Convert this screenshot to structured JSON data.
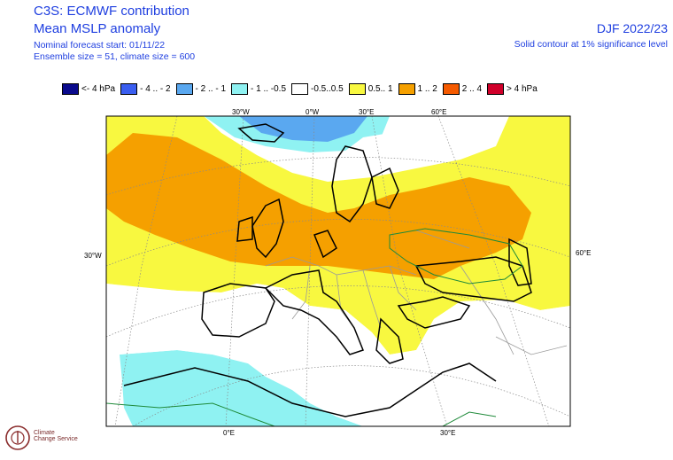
{
  "header": {
    "title_line1": "C3S: ECMWF contribution",
    "title_line2": "Mean MSLP anomaly",
    "forecast_start": "Nominal forecast start: 01/11/22",
    "ensemble": "Ensemble size = 51, climate size = 600",
    "season": "DJF 2022/23",
    "significance": "Solid contour at 1% significance level"
  },
  "legend": [
    {
      "label": "<- 4 hPa",
      "color": "#0a0a8c"
    },
    {
      "label": "- 4 .. - 2",
      "color": "#3a5ef0"
    },
    {
      "label": "- 2 .. - 1",
      "color": "#5aa8f0"
    },
    {
      "label": "- 1 .. -0.5",
      "color": "#8ff2f2"
    },
    {
      "label": "-0.5..0.5",
      "color": "#ffffff"
    },
    {
      "label": "0.5.. 1",
      "color": "#f8f840"
    },
    {
      "label": "1 .. 2",
      "color": "#f5a000"
    },
    {
      "label": "2 .. 4",
      "color": "#f55a00"
    },
    {
      "label": "> 4 hPa",
      "color": "#d0002a"
    }
  ],
  "map_labels": {
    "top_30w": "30°W",
    "top_0w": "0°W",
    "top_30e": "30°E",
    "top_60e": "60°E",
    "left_30w": "30°W",
    "right_60e": "60°E",
    "bottom_0e": "0°E",
    "bottom_30e": "30°E"
  },
  "logo": {
    "line1": "Climate",
    "line2": "Change Service"
  }
}
